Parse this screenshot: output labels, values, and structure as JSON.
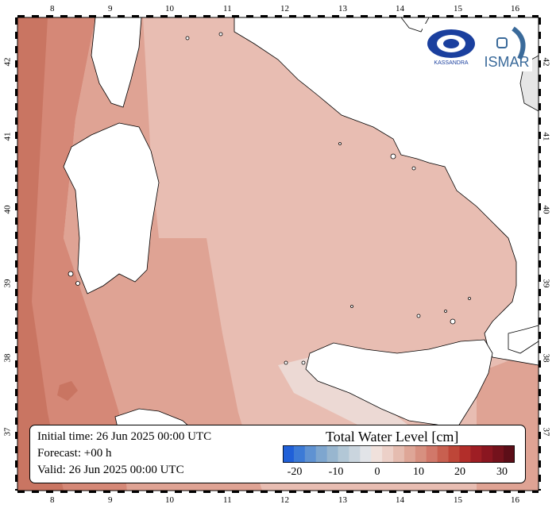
{
  "map": {
    "lon_labels": [
      "8",
      "9",
      "10",
      "11",
      "12",
      "13",
      "14",
      "15",
      "16"
    ],
    "lat_labels": [
      "37",
      "38",
      "39",
      "40",
      "41",
      "42"
    ],
    "colors": {
      "sea_far": "#e8bdb2",
      "sea_mid": "#dfa394",
      "sea_west": "#d58877",
      "sea_deep": "#c97562",
      "sea_light": "#ecd9d4",
      "land": "#ffffff",
      "grey_area": "#e6e6e6"
    }
  },
  "info": {
    "initial": "Initial time: 26 Jun 2025 00:00 UTC",
    "forecast": "Forecast: +00 h",
    "valid": "Valid: 26 Jun 2025 00:00 UTC"
  },
  "legend": {
    "title": "Total Water Level [cm]",
    "ticks": [
      "-20",
      "-10",
      "0",
      "10",
      "20",
      "30"
    ],
    "colors": [
      "#2060d8",
      "#3c7ad6",
      "#5f92d2",
      "#7ea6cf",
      "#98b6cf",
      "#b2c7d6",
      "#cad5de",
      "#e2e4e8",
      "#f0e1dc",
      "#ecd0c8",
      "#e5bcb0",
      "#dea697",
      "#d79080",
      "#d1786a",
      "#c86050",
      "#be4638",
      "#b22e2a",
      "#9e1e24",
      "#8a1620",
      "#74121c",
      "#5c0e18"
    ]
  },
  "logos": {
    "left_text": "KASSANDRA",
    "right_text": "ISMAR"
  }
}
